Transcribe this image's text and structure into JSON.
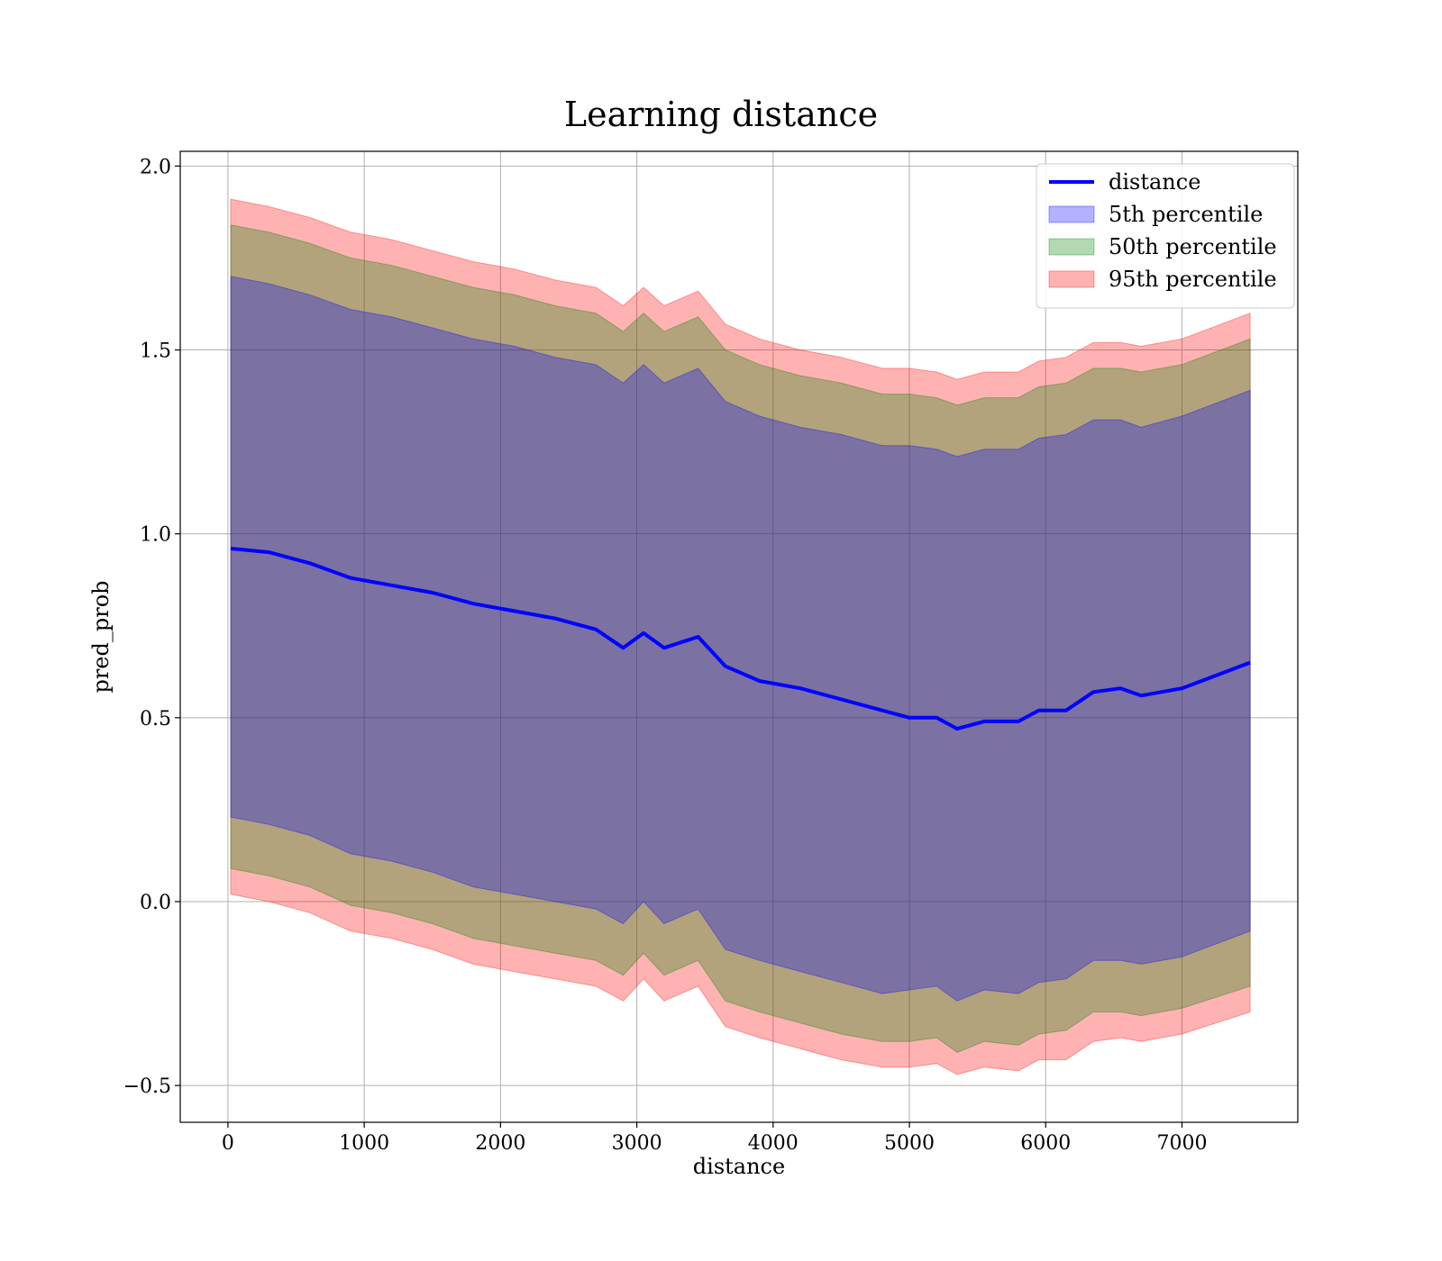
{
  "chart_data": {
    "type": "area",
    "title": "Learning distance",
    "xlabel": "distance",
    "ylabel": "pred_prob",
    "xlim": [
      -350,
      7850
    ],
    "ylim": [
      -0.6,
      2.04
    ],
    "x_ticks": [
      0,
      1000,
      2000,
      3000,
      4000,
      5000,
      6000,
      7000
    ],
    "x_tick_labels": [
      "0",
      "1000",
      "2000",
      "3000",
      "4000",
      "5000",
      "6000",
      "7000"
    ],
    "y_ticks": [
      -0.5,
      0.0,
      0.5,
      1.0,
      1.5,
      2.0
    ],
    "y_tick_labels": [
      "−0.5",
      "0.0",
      "0.5",
      "1.0",
      "1.5",
      "2.0"
    ],
    "grid": true,
    "legend_position": "top-right",
    "x": [
      20,
      300,
      600,
      900,
      1200,
      1500,
      1800,
      2100,
      2400,
      2700,
      2900,
      3050,
      3200,
      3450,
      3650,
      3900,
      4200,
      4500,
      4800,
      5000,
      5200,
      5350,
      5550,
      5800,
      5950,
      6150,
      6350,
      6550,
      6700,
      7000,
      7500
    ],
    "series": [
      {
        "name": "distance",
        "kind": "line",
        "color": "#0000ff",
        "values": [
          0.96,
          0.95,
          0.92,
          0.88,
          0.86,
          0.84,
          0.81,
          0.79,
          0.77,
          0.74,
          0.69,
          0.73,
          0.69,
          0.72,
          0.64,
          0.6,
          0.58,
          0.55,
          0.52,
          0.5,
          0.5,
          0.47,
          0.49,
          0.49,
          0.52,
          0.52,
          0.57,
          0.58,
          0.56,
          0.58,
          0.65
        ]
      },
      {
        "name": "5th percentile",
        "kind": "band",
        "color": "#0000ff",
        "lower": [
          0.23,
          0.21,
          0.18,
          0.13,
          0.11,
          0.08,
          0.04,
          0.02,
          0.0,
          -0.02,
          -0.06,
          0.0,
          -0.06,
          -0.02,
          -0.13,
          -0.16,
          -0.19,
          -0.22,
          -0.25,
          -0.24,
          -0.23,
          -0.27,
          -0.24,
          -0.25,
          -0.22,
          -0.21,
          -0.16,
          -0.16,
          -0.17,
          -0.15,
          -0.08
        ],
        "upper": [
          1.7,
          1.68,
          1.65,
          1.61,
          1.59,
          1.56,
          1.53,
          1.51,
          1.48,
          1.46,
          1.41,
          1.46,
          1.41,
          1.45,
          1.36,
          1.32,
          1.29,
          1.27,
          1.24,
          1.24,
          1.23,
          1.21,
          1.23,
          1.23,
          1.26,
          1.27,
          1.31,
          1.31,
          1.29,
          1.32,
          1.39
        ]
      },
      {
        "name": "50th percentile",
        "kind": "band",
        "color": "#008000",
        "lower": [
          0.09,
          0.07,
          0.04,
          -0.01,
          -0.03,
          -0.06,
          -0.1,
          -0.12,
          -0.14,
          -0.16,
          -0.2,
          -0.14,
          -0.2,
          -0.16,
          -0.27,
          -0.3,
          -0.33,
          -0.36,
          -0.38,
          -0.38,
          -0.37,
          -0.41,
          -0.38,
          -0.39,
          -0.36,
          -0.35,
          -0.3,
          -0.3,
          -0.31,
          -0.29,
          -0.23
        ],
        "upper": [
          1.84,
          1.82,
          1.79,
          1.75,
          1.73,
          1.7,
          1.67,
          1.65,
          1.62,
          1.6,
          1.55,
          1.6,
          1.55,
          1.59,
          1.5,
          1.46,
          1.43,
          1.41,
          1.38,
          1.38,
          1.37,
          1.35,
          1.37,
          1.37,
          1.4,
          1.41,
          1.45,
          1.45,
          1.44,
          1.46,
          1.53
        ]
      },
      {
        "name": "95th percentile",
        "kind": "band",
        "color": "#ff0000",
        "lower": [
          0.02,
          0.0,
          -0.03,
          -0.08,
          -0.1,
          -0.13,
          -0.17,
          -0.19,
          -0.21,
          -0.23,
          -0.27,
          -0.21,
          -0.27,
          -0.23,
          -0.34,
          -0.37,
          -0.4,
          -0.43,
          -0.45,
          -0.45,
          -0.44,
          -0.47,
          -0.45,
          -0.46,
          -0.43,
          -0.43,
          -0.38,
          -0.37,
          -0.38,
          -0.36,
          -0.3
        ],
        "upper": [
          1.91,
          1.89,
          1.86,
          1.82,
          1.8,
          1.77,
          1.74,
          1.72,
          1.69,
          1.67,
          1.62,
          1.67,
          1.62,
          1.66,
          1.57,
          1.53,
          1.5,
          1.48,
          1.45,
          1.45,
          1.44,
          1.42,
          1.44,
          1.44,
          1.47,
          1.48,
          1.52,
          1.52,
          1.51,
          1.53,
          1.6
        ]
      }
    ]
  }
}
